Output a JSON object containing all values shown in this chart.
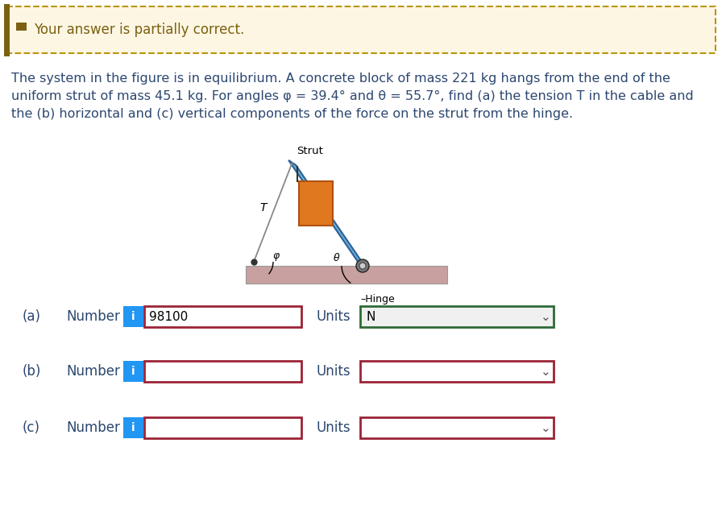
{
  "banner_text": "Your answer is partially correct.",
  "banner_bg": "#fdf6e3",
  "banner_border": "#b8960c",
  "banner_icon_color": "#7a6010",
  "problem_line1": "The system in the figure is in equilibrium. A concrete block of mass 221 kg hangs from the end of the",
  "problem_line2": "uniform strut of mass 45.1 kg. For angles φ = 39.4° and θ = 55.7°, find (a) the tension T in the cable and",
  "problem_line3": "the (b) horizontal and (c) vertical components of the force on the strut from the hinge.",
  "text_color": "#2c4770",
  "bg_color": "#ffffff",
  "info_btn_color": "#2196f3",
  "input_border_red": "#9b2335",
  "units_border_green": "#2e6b35",
  "units_bg_green": "#f0f0f0",
  "input_bg": "#ffffff",
  "chevron_color": "#555555",
  "strut_color": "#6aaed6",
  "strut_edge": "#2e6096",
  "cable_color": "#888888",
  "ground_fill": "#c9a0a0",
  "ground_edge": "#999999",
  "block_fill": "#e07820",
  "block_edge": "#b05010",
  "hinge_fill": "#555555",
  "dashed_border": "#b8960c",
  "row_a_value": "98100",
  "row_a_units": "N"
}
